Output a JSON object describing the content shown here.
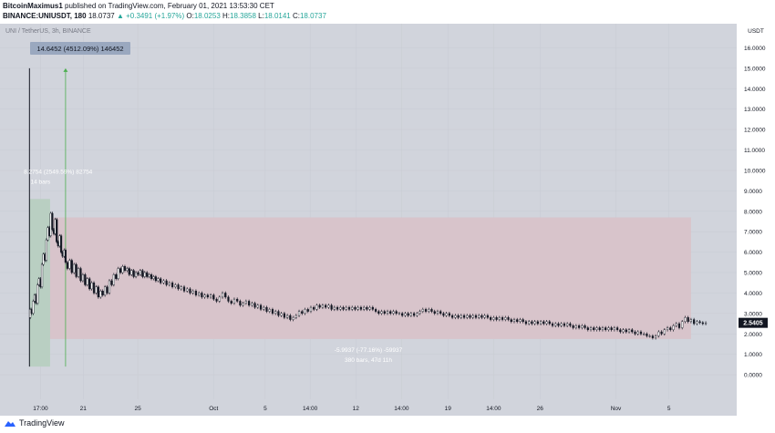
{
  "header": {
    "author": "BitcoinMaximus1",
    "published": "published on TradingView.com, February 01, 2021 13:53:30 CET",
    "symbol": "BINANCE:UNIUSDT, 180",
    "last": "18.0737",
    "change": "▲ +0.3491 (+1.97%)",
    "ohlc": [
      {
        "k": "O:",
        "v": "18.0253"
      },
      {
        "k": "H:",
        "v": "18.3858"
      },
      {
        "k": "L:",
        "v": "18.0141"
      },
      {
        "k": "C:",
        "v": "18.0737"
      }
    ]
  },
  "footer": {
    "brand": "TradingView"
  },
  "colors": {
    "plot_bg": "#d1d4dc",
    "candle": "#131722",
    "pink_zone": "#d8c4cb",
    "green_zone": "#b9cfc2",
    "green_arrow": "#4caf50",
    "price_label_bg": "#131722",
    "measure_box": "#9aa8bf"
  },
  "chart_data": {
    "type": "candlestick",
    "title": "UNI / TetherUS, 3h, BINANCE",
    "currency": "USDT",
    "current_price": "2.5405",
    "ylim": [
      -1.2,
      17.0
    ],
    "yticks": [
      "0.0000",
      "1.0000",
      "2.0000",
      "3.0000",
      "4.0000",
      "5.0000",
      "6.0000",
      "7.0000",
      "8.0000",
      "9.0000",
      "10.0000",
      "11.0000",
      "12.0000",
      "13.0000",
      "14.0000",
      "15.0000",
      "16.0000"
    ],
    "xlim": [
      0,
      1000
    ],
    "xticks": [
      {
        "x": 55,
        "label": "17:00"
      },
      {
        "x": 113,
        "label": "21"
      },
      {
        "x": 187,
        "label": "25"
      },
      {
        "x": 290,
        "label": "Oct"
      },
      {
        "x": 360,
        "label": "5"
      },
      {
        "x": 421,
        "label": "14:00"
      },
      {
        "x": 483,
        "label": "12"
      },
      {
        "x": 545,
        "label": "14:00"
      },
      {
        "x": 608,
        "label": "19"
      },
      {
        "x": 670,
        "label": "14:00"
      },
      {
        "x": 733,
        "label": "26"
      },
      {
        "x": 836,
        "label": "Nov"
      },
      {
        "x": 908,
        "label": "5"
      }
    ],
    "price_path": [
      [
        40,
        2.8
      ],
      [
        42,
        3.2
      ],
      [
        44,
        3.0
      ],
      [
        46,
        3.6
      ],
      [
        48,
        3.9
      ],
      [
        50,
        3.5
      ],
      [
        52,
        4.4
      ],
      [
        54,
        4.7
      ],
      [
        56,
        4.3
      ],
      [
        58,
        5.4
      ],
      [
        60,
        5.9
      ],
      [
        62,
        5.6
      ],
      [
        64,
        6.6
      ],
      [
        66,
        7.2
      ],
      [
        68,
        6.8
      ],
      [
        70,
        7.9
      ],
      [
        72,
        7.1
      ],
      [
        74,
        6.9
      ],
      [
        76,
        7.6
      ],
      [
        78,
        6.5
      ],
      [
        80,
        6.3
      ],
      [
        82,
        6.8
      ],
      [
        84,
        6.0
      ],
      [
        86,
        5.8
      ],
      [
        88,
        6.1
      ],
      [
        90,
        5.5
      ],
      [
        93,
        5.2
      ],
      [
        96,
        5.6
      ],
      [
        99,
        5.0
      ],
      [
        102,
        5.4
      ],
      [
        105,
        4.8
      ],
      [
        108,
        5.2
      ],
      [
        111,
        4.6
      ],
      [
        114,
        4.9
      ],
      [
        117,
        4.4
      ],
      [
        120,
        4.7
      ],
      [
        123,
        4.2
      ],
      [
        126,
        4.5
      ],
      [
        129,
        4.0
      ],
      [
        132,
        4.3
      ],
      [
        135,
        3.8
      ],
      [
        138,
        4.1
      ],
      [
        141,
        3.9
      ],
      [
        144,
        4.3
      ],
      [
        147,
        4.0
      ],
      [
        150,
        4.6
      ],
      [
        153,
        4.4
      ],
      [
        156,
        4.9
      ],
      [
        159,
        4.7
      ],
      [
        162,
        5.2
      ],
      [
        165,
        5.0
      ],
      [
        168,
        5.3
      ],
      [
        171,
        5.1
      ],
      [
        174,
        5.2
      ],
      [
        177,
        4.9
      ],
      [
        180,
        5.1
      ],
      [
        183,
        4.8
      ],
      [
        186,
        5.0
      ],
      [
        189,
        4.9
      ],
      [
        192,
        5.1
      ],
      [
        195,
        4.8
      ],
      [
        198,
        5.0
      ],
      [
        201,
        4.8
      ],
      [
        204,
        4.9
      ],
      [
        207,
        4.7
      ],
      [
        210,
        4.8
      ],
      [
        213,
        4.6
      ],
      [
        216,
        4.7
      ],
      [
        220,
        4.5
      ],
      [
        224,
        4.6
      ],
      [
        228,
        4.4
      ],
      [
        232,
        4.5
      ],
      [
        236,
        4.3
      ],
      [
        240,
        4.4
      ],
      [
        244,
        4.2
      ],
      [
        248,
        4.3
      ],
      [
        252,
        4.1
      ],
      [
        256,
        4.2
      ],
      [
        260,
        4.0
      ],
      [
        264,
        4.1
      ],
      [
        268,
        3.9
      ],
      [
        272,
        4.0
      ],
      [
        276,
        3.8
      ],
      [
        280,
        3.9
      ],
      [
        284,
        3.8
      ],
      [
        288,
        3.9
      ],
      [
        292,
        3.7
      ],
      [
        296,
        3.6
      ],
      [
        300,
        3.8
      ],
      [
        304,
        4.0
      ],
      [
        308,
        3.8
      ],
      [
        312,
        3.6
      ],
      [
        316,
        3.5
      ],
      [
        320,
        3.7
      ],
      [
        324,
        3.6
      ],
      [
        328,
        3.4
      ],
      [
        332,
        3.5
      ],
      [
        336,
        3.6
      ],
      [
        340,
        3.4
      ],
      [
        344,
        3.5
      ],
      [
        348,
        3.3
      ],
      [
        352,
        3.4
      ],
      [
        356,
        3.2
      ],
      [
        360,
        3.3
      ],
      [
        364,
        3.1
      ],
      [
        368,
        3.2
      ],
      [
        372,
        3.0
      ],
      [
        376,
        3.1
      ],
      [
        380,
        2.9
      ],
      [
        384,
        3.0
      ],
      [
        388,
        2.8
      ],
      [
        392,
        2.9
      ],
      [
        396,
        2.7
      ],
      [
        400,
        2.8
      ],
      [
        404,
        2.9
      ],
      [
        408,
        3.1
      ],
      [
        412,
        3.0
      ],
      [
        416,
        3.2
      ],
      [
        420,
        3.1
      ],
      [
        424,
        3.3
      ],
      [
        428,
        3.2
      ],
      [
        432,
        3.4
      ],
      [
        436,
        3.3
      ],
      [
        440,
        3.4
      ],
      [
        444,
        3.3
      ],
      [
        448,
        3.4
      ],
      [
        452,
        3.2
      ],
      [
        456,
        3.3
      ],
      [
        460,
        3.2
      ],
      [
        464,
        3.3
      ],
      [
        468,
        3.2
      ],
      [
        472,
        3.3
      ],
      [
        476,
        3.2
      ],
      [
        480,
        3.3
      ],
      [
        484,
        3.2
      ],
      [
        488,
        3.3
      ],
      [
        492,
        3.2
      ],
      [
        496,
        3.3
      ],
      [
        500,
        3.2
      ],
      [
        504,
        3.3
      ],
      [
        508,
        3.2
      ],
      [
        512,
        3.1
      ],
      [
        516,
        3.0
      ],
      [
        520,
        3.1
      ],
      [
        524,
        3.0
      ],
      [
        528,
        3.1
      ],
      [
        532,
        3.0
      ],
      [
        536,
        3.1
      ],
      [
        540,
        3.0
      ],
      [
        544,
        3.0
      ],
      [
        548,
        2.9
      ],
      [
        552,
        3.0
      ],
      [
        556,
        2.9
      ],
      [
        560,
        3.0
      ],
      [
        564,
        2.9
      ],
      [
        568,
        3.0
      ],
      [
        572,
        3.1
      ],
      [
        576,
        3.2
      ],
      [
        580,
        3.1
      ],
      [
        584,
        3.2
      ],
      [
        588,
        3.1
      ],
      [
        592,
        3.0
      ],
      [
        596,
        3.1
      ],
      [
        600,
        3.0
      ],
      [
        604,
        2.9
      ],
      [
        608,
        3.0
      ],
      [
        612,
        2.9
      ],
      [
        616,
        2.8
      ],
      [
        620,
        2.9
      ],
      [
        624,
        2.8
      ],
      [
        628,
        2.9
      ],
      [
        632,
        2.8
      ],
      [
        636,
        2.9
      ],
      [
        640,
        2.8
      ],
      [
        644,
        2.9
      ],
      [
        648,
        2.8
      ],
      [
        652,
        2.9
      ],
      [
        656,
        2.8
      ],
      [
        660,
        2.9
      ],
      [
        664,
        2.8
      ],
      [
        668,
        2.7
      ],
      [
        672,
        2.8
      ],
      [
        676,
        2.7
      ],
      [
        680,
        2.8
      ],
      [
        684,
        2.7
      ],
      [
        688,
        2.8
      ],
      [
        692,
        2.7
      ],
      [
        696,
        2.6
      ],
      [
        700,
        2.7
      ],
      [
        704,
        2.6
      ],
      [
        708,
        2.7
      ],
      [
        712,
        2.6
      ],
      [
        716,
        2.5
      ],
      [
        720,
        2.6
      ],
      [
        724,
        2.5
      ],
      [
        728,
        2.6
      ],
      [
        732,
        2.5
      ],
      [
        736,
        2.6
      ],
      [
        740,
        2.5
      ],
      [
        744,
        2.6
      ],
      [
        748,
        2.5
      ],
      [
        752,
        2.4
      ],
      [
        756,
        2.5
      ],
      [
        760,
        2.4
      ],
      [
        764,
        2.5
      ],
      [
        768,
        2.4
      ],
      [
        772,
        2.5
      ],
      [
        776,
        2.4
      ],
      [
        780,
        2.3
      ],
      [
        784,
        2.4
      ],
      [
        788,
        2.3
      ],
      [
        792,
        2.4
      ],
      [
        796,
        2.3
      ],
      [
        800,
        2.2
      ],
      [
        804,
        2.3
      ],
      [
        808,
        2.2
      ],
      [
        812,
        2.3
      ],
      [
        816,
        2.2
      ],
      [
        820,
        2.3
      ],
      [
        824,
        2.2
      ],
      [
        828,
        2.3
      ],
      [
        832,
        2.2
      ],
      [
        836,
        2.3
      ],
      [
        840,
        2.2
      ],
      [
        844,
        2.1
      ],
      [
        848,
        2.2
      ],
      [
        852,
        2.1
      ],
      [
        856,
        2.2
      ],
      [
        860,
        2.1
      ],
      [
        864,
        2.0
      ],
      [
        868,
        2.1
      ],
      [
        872,
        2.0
      ],
      [
        876,
        2.0
      ],
      [
        880,
        1.9
      ],
      [
        884,
        1.9
      ],
      [
        888,
        1.8
      ],
      [
        892,
        1.9
      ],
      [
        896,
        2.1
      ],
      [
        900,
        2.0
      ],
      [
        904,
        2.2
      ],
      [
        908,
        2.3
      ],
      [
        912,
        2.2
      ],
      [
        916,
        2.4
      ],
      [
        920,
        2.5
      ],
      [
        924,
        2.3
      ],
      [
        928,
        2.6
      ],
      [
        932,
        2.8
      ],
      [
        936,
        2.6
      ],
      [
        940,
        2.7
      ],
      [
        944,
        2.5
      ],
      [
        948,
        2.6
      ],
      [
        952,
        2.55
      ],
      [
        956,
        2.5
      ],
      [
        960,
        2.54
      ]
    ],
    "spike": {
      "x": 40,
      "low": 0.4,
      "high": 15.0
    },
    "green_zone": {
      "x0": 40,
      "x1": 68,
      "y0": 0.4,
      "y1": 8.6
    },
    "green_arrow": {
      "x": 89,
      "y0": 0.4,
      "y1": 15.0
    },
    "pink_zone": {
      "x0": 68,
      "x1": 938,
      "y0": 1.75,
      "y1": 7.7
    },
    "annotations": {
      "top_box": "14.6452 (4512.09%) 146452",
      "green_label_1": "8.2754 (2549.59%) 82754",
      "green_label_2": "14 bars",
      "pink_label_1": "-5.9937 (-77.16%) -59937",
      "pink_label_2": "380 bars, 47d 11h"
    }
  }
}
